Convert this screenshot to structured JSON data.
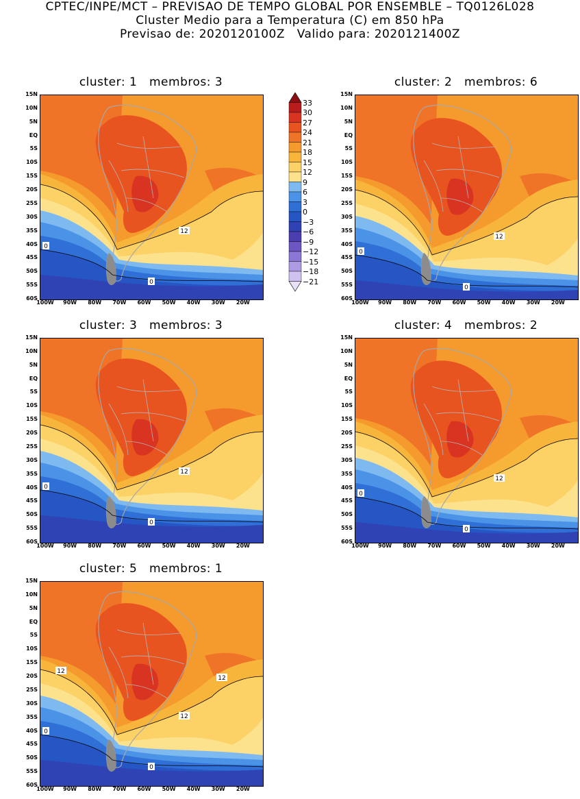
{
  "header": {
    "line1": "CPTEC/INPE/MCT – PREVISAO DE TEMPO GLOBAL POR ENSEMBLE – TQ0126L028",
    "line2": "Cluster Medio para a Temperatura (C) em 850 hPa",
    "line3": "Previsao de: 2020120100Z   Valido para: 2020121400Z"
  },
  "axes": {
    "lat_labels": [
      "15N",
      "10N",
      "5N",
      "EQ",
      "5S",
      "10S",
      "15S",
      "20S",
      "25S",
      "30S",
      "35S",
      "40S",
      "45S",
      "50S",
      "55S",
      "60S"
    ],
    "lon_labels": [
      "100W",
      "90W",
      "80W",
      "70W",
      "60W",
      "50W",
      "40W",
      "30W",
      "20W"
    ],
    "lon_range": [
      -100,
      -10
    ],
    "lat_range": [
      -60,
      15
    ]
  },
  "colorbar": {
    "labels": [
      "33",
      "30",
      "27",
      "24",
      "21",
      "18",
      "15",
      "12",
      "9",
      "6",
      "3",
      "0",
      "-3",
      "-6",
      "-9",
      "-12",
      "-15",
      "-18",
      "-21"
    ],
    "colors": [
      "#8b0f12",
      "#b81c1c",
      "#d93421",
      "#e85420",
      "#f07427",
      "#f59a2d",
      "#f8b53c",
      "#fcd166",
      "#fde28d",
      "#7eb9f0",
      "#4a93e6",
      "#2f6fd6",
      "#2556c4",
      "#2f43b5",
      "#4d3eb0",
      "#6b56c2",
      "#8c78d4",
      "#ad9ae3",
      "#cfc2f0",
      "#e7e0f8"
    ]
  },
  "panels": [
    {
      "title": "cluster: 1   membros: 3",
      "labels": {
        "c12": "12",
        "c0a": "0",
        "c0b": "0"
      }
    },
    {
      "title": "cluster: 2   membros: 6",
      "labels": {
        "c12": "12",
        "c0a": "0",
        "c0b": "0"
      }
    },
    {
      "title": "cluster: 3   membros: 3",
      "labels": {
        "c12": "12",
        "c0a": "0",
        "c0b": "0"
      }
    },
    {
      "title": "cluster: 4   membros: 2",
      "labels": {
        "c12": "12",
        "c0a": "0",
        "c0b": "0"
      }
    },
    {
      "title": "cluster: 5   membros: 1",
      "labels": {
        "c12": "12",
        "c12b": "12",
        "c12c": "12",
        "c0a": "0",
        "c0b": "0"
      }
    }
  ]
}
